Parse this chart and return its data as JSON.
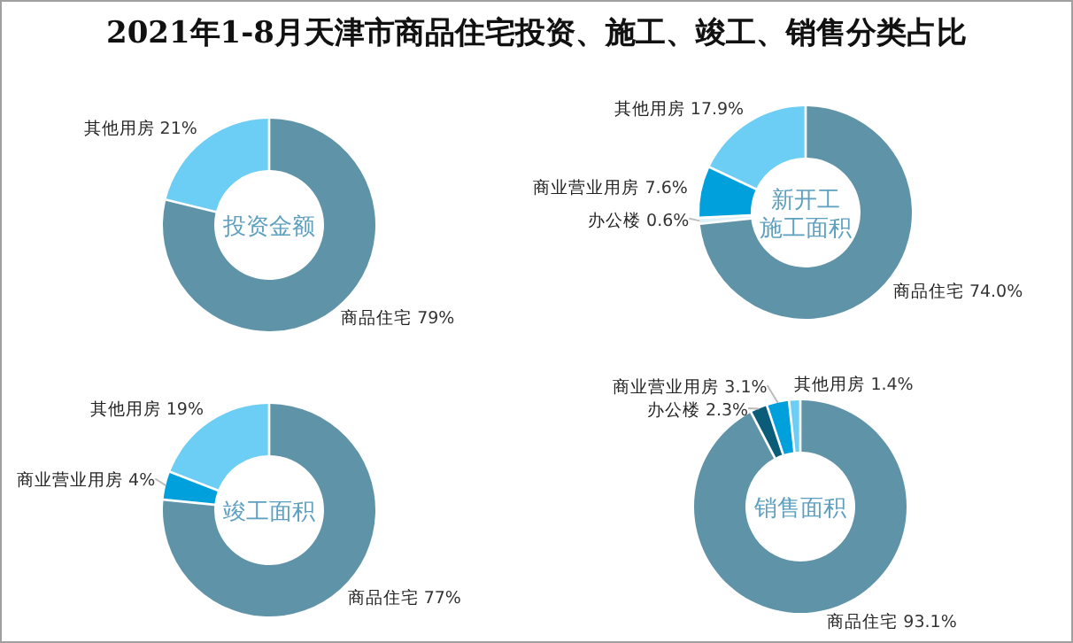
{
  "chart_data": [
    {
      "type": "donut",
      "title": "投资金额",
      "annotations": [
        "2021年1-8月天津市商品住宅投资、施工、竣工、销售分类占比"
      ],
      "categories": [
        "商品住宅",
        "其他用房"
      ],
      "values": [
        79,
        21
      ],
      "value_labels": [
        "79%",
        "21%"
      ],
      "colors": [
        "#5f93a8",
        "#6dcef5"
      ]
    },
    {
      "type": "donut",
      "title": "新开工施工面积",
      "categories": [
        "商品住宅",
        "办公楼",
        "商业营业用房",
        "其他用房"
      ],
      "values": [
        74.0,
        0.6,
        7.6,
        17.9
      ],
      "value_labels": [
        "74.0%",
        "0.6%",
        "7.6%",
        "17.9%"
      ],
      "colors": [
        "#5f93a8",
        "#dff2fa",
        "#00a0dc",
        "#6dcef5"
      ]
    },
    {
      "type": "donut",
      "title": "竣工面积",
      "categories": [
        "商品住宅",
        "商业营业用房",
        "其他用房"
      ],
      "values": [
        77,
        4,
        19
      ],
      "value_labels": [
        "77%",
        "4%",
        "19%"
      ],
      "colors": [
        "#5f93a8",
        "#00a0dc",
        "#6dcef5"
      ]
    },
    {
      "type": "donut",
      "title": "销售面积",
      "categories": [
        "商品住宅",
        "办公楼",
        "商业营业用房",
        "其他用房"
      ],
      "values": [
        93.1,
        2.3,
        3.1,
        1.4
      ],
      "value_labels": [
        "93.1%",
        "2.3%",
        "3.1%",
        "1.4%"
      ],
      "colors": [
        "#5f93a8",
        "#0b5c78",
        "#00a0dc",
        "#6dcef5"
      ]
    }
  ]
}
